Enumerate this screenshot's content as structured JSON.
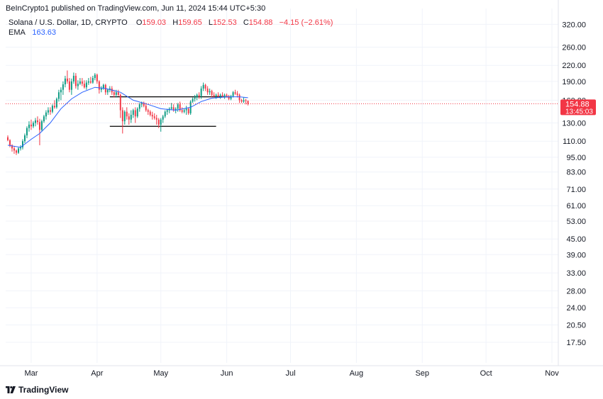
{
  "header": {
    "published_line": "BeInCrypto1 published on TradingView.com, Jun 11, 2024 15:44 UTC+5:30"
  },
  "legend": {
    "symbol": "Solana / U.S. Dollar, 1D, CRYPTO",
    "o_label": "O",
    "o_value": "159.03",
    "h_label": "H",
    "h_value": "159.65",
    "l_label": "L",
    "l_value": "152.53",
    "c_label": "C",
    "c_value": "154.88",
    "change": "−4.15 (−2.61%)",
    "ema_label": "EMA",
    "ema_value": "163.63"
  },
  "price_tag": {
    "value": "154.88",
    "countdown": "13:45:03",
    "color": "#f23645"
  },
  "footer": {
    "brand": "TradingView"
  },
  "colors": {
    "up": "#089981",
    "down": "#f23645",
    "ema": "#2962ff",
    "grid": "#f0f3fa",
    "axis_text": "#131722",
    "level_line": "#000000"
  },
  "chart_data": {
    "type": "candlestick",
    "scale": "log",
    "y_ticks": [
      320.0,
      260.0,
      220.0,
      190.0,
      160.0,
      130.0,
      110.0,
      95.0,
      83.0,
      71.0,
      61.0,
      53.0,
      45.0,
      39.0,
      33.0,
      28.0,
      24.0,
      20.5,
      17.5
    ],
    "x_ticks": [
      "Mar",
      "Apr",
      "May",
      "Jun",
      "Jul",
      "Aug",
      "Sep",
      "Oct",
      "Nov"
    ],
    "x_tick_dates": [
      "2024-03-01",
      "2024-04-01",
      "2024-05-01",
      "2024-06-01",
      "2024-07-01",
      "2024-08-01",
      "2024-09-01",
      "2024-10-01",
      "2024-11-01"
    ],
    "x_range": [
      "2024-02-18",
      "2024-11-04"
    ],
    "y_range": [
      14.5,
      370
    ],
    "candles": [
      {
        "d": "2024-02-19",
        "o": 114,
        "h": 116,
        "l": 110,
        "c": 111
      },
      {
        "d": "2024-02-20",
        "o": 111,
        "h": 112,
        "l": 104,
        "c": 106
      },
      {
        "d": "2024-02-21",
        "o": 106,
        "h": 107,
        "l": 100,
        "c": 103
      },
      {
        "d": "2024-02-22",
        "o": 103,
        "h": 105,
        "l": 98,
        "c": 101
      },
      {
        "d": "2024-02-23",
        "o": 101,
        "h": 102,
        "l": 97,
        "c": 99
      },
      {
        "d": "2024-02-24",
        "o": 99,
        "h": 104,
        "l": 98,
        "c": 103
      },
      {
        "d": "2024-02-25",
        "o": 103,
        "h": 106,
        "l": 101,
        "c": 104
      },
      {
        "d": "2024-02-26",
        "o": 104,
        "h": 112,
        "l": 102,
        "c": 110
      },
      {
        "d": "2024-02-27",
        "o": 110,
        "h": 118,
        "l": 108,
        "c": 116
      },
      {
        "d": "2024-02-28",
        "o": 116,
        "h": 126,
        "l": 113,
        "c": 124
      },
      {
        "d": "2024-02-29",
        "o": 124,
        "h": 132,
        "l": 120,
        "c": 128
      },
      {
        "d": "2024-03-01",
        "o": 128,
        "h": 134,
        "l": 122,
        "c": 126
      },
      {
        "d": "2024-03-02",
        "o": 126,
        "h": 132,
        "l": 124,
        "c": 130
      },
      {
        "d": "2024-03-03",
        "o": 130,
        "h": 136,
        "l": 126,
        "c": 133
      },
      {
        "d": "2024-03-04",
        "o": 133,
        "h": 138,
        "l": 128,
        "c": 131
      },
      {
        "d": "2024-03-05",
        "o": 131,
        "h": 135,
        "l": 106,
        "c": 122
      },
      {
        "d": "2024-03-06",
        "o": 122,
        "h": 134,
        "l": 120,
        "c": 132
      },
      {
        "d": "2024-03-07",
        "o": 132,
        "h": 140,
        "l": 130,
        "c": 138
      },
      {
        "d": "2024-03-08",
        "o": 138,
        "h": 146,
        "l": 134,
        "c": 143
      },
      {
        "d": "2024-03-09",
        "o": 143,
        "h": 150,
        "l": 140,
        "c": 146
      },
      {
        "d": "2024-03-10",
        "o": 146,
        "h": 150,
        "l": 140,
        "c": 144
      },
      {
        "d": "2024-03-11",
        "o": 144,
        "h": 154,
        "l": 142,
        "c": 152
      },
      {
        "d": "2024-03-12",
        "o": 152,
        "h": 160,
        "l": 148,
        "c": 150
      },
      {
        "d": "2024-03-13",
        "o": 150,
        "h": 164,
        "l": 148,
        "c": 162
      },
      {
        "d": "2024-03-14",
        "o": 162,
        "h": 176,
        "l": 158,
        "c": 172
      },
      {
        "d": "2024-03-15",
        "o": 172,
        "h": 180,
        "l": 160,
        "c": 176
      },
      {
        "d": "2024-03-16",
        "o": 176,
        "h": 190,
        "l": 168,
        "c": 185
      },
      {
        "d": "2024-03-17",
        "o": 185,
        "h": 200,
        "l": 180,
        "c": 195
      },
      {
        "d": "2024-03-18",
        "o": 195,
        "h": 210,
        "l": 186,
        "c": 190
      },
      {
        "d": "2024-03-19",
        "o": 190,
        "h": 196,
        "l": 172,
        "c": 176
      },
      {
        "d": "2024-03-20",
        "o": 176,
        "h": 195,
        "l": 168,
        "c": 190
      },
      {
        "d": "2024-03-21",
        "o": 190,
        "h": 206,
        "l": 186,
        "c": 200
      },
      {
        "d": "2024-03-22",
        "o": 200,
        "h": 205,
        "l": 178,
        "c": 182
      },
      {
        "d": "2024-03-23",
        "o": 182,
        "h": 192,
        "l": 176,
        "c": 186
      },
      {
        "d": "2024-03-24",
        "o": 186,
        "h": 196,
        "l": 184,
        "c": 190
      },
      {
        "d": "2024-03-25",
        "o": 190,
        "h": 196,
        "l": 182,
        "c": 186
      },
      {
        "d": "2024-03-26",
        "o": 186,
        "h": 192,
        "l": 178,
        "c": 180
      },
      {
        "d": "2024-03-27",
        "o": 180,
        "h": 192,
        "l": 176,
        "c": 188
      },
      {
        "d": "2024-03-28",
        "o": 188,
        "h": 196,
        "l": 184,
        "c": 190
      },
      {
        "d": "2024-03-29",
        "o": 190,
        "h": 198,
        "l": 186,
        "c": 188
      },
      {
        "d": "2024-03-30",
        "o": 188,
        "h": 200,
        "l": 186,
        "c": 196
      },
      {
        "d": "2024-03-31",
        "o": 196,
        "h": 205,
        "l": 192,
        "c": 202
      },
      {
        "d": "2024-04-01",
        "o": 202,
        "h": 204,
        "l": 186,
        "c": 190
      },
      {
        "d": "2024-04-02",
        "o": 190,
        "h": 192,
        "l": 170,
        "c": 176
      },
      {
        "d": "2024-04-03",
        "o": 176,
        "h": 182,
        "l": 172,
        "c": 178
      },
      {
        "d": "2024-04-04",
        "o": 178,
        "h": 186,
        "l": 176,
        "c": 184
      },
      {
        "d": "2024-04-05",
        "o": 184,
        "h": 186,
        "l": 168,
        "c": 172
      },
      {
        "d": "2024-04-06",
        "o": 172,
        "h": 178,
        "l": 168,
        "c": 176
      },
      {
        "d": "2024-04-07",
        "o": 176,
        "h": 182,
        "l": 172,
        "c": 178
      },
      {
        "d": "2024-04-08",
        "o": 178,
        "h": 182,
        "l": 168,
        "c": 172
      },
      {
        "d": "2024-04-09",
        "o": 172,
        "h": 176,
        "l": 164,
        "c": 168
      },
      {
        "d": "2024-04-10",
        "o": 168,
        "h": 176,
        "l": 164,
        "c": 172
      },
      {
        "d": "2024-04-11",
        "o": 172,
        "h": 176,
        "l": 166,
        "c": 168
      },
      {
        "d": "2024-04-12",
        "o": 168,
        "h": 170,
        "l": 136,
        "c": 146
      },
      {
        "d": "2024-04-13",
        "o": 146,
        "h": 150,
        "l": 118,
        "c": 132
      },
      {
        "d": "2024-04-14",
        "o": 132,
        "h": 146,
        "l": 128,
        "c": 144
      },
      {
        "d": "2024-04-15",
        "o": 144,
        "h": 150,
        "l": 134,
        "c": 138
      },
      {
        "d": "2024-04-16",
        "o": 138,
        "h": 142,
        "l": 128,
        "c": 134
      },
      {
        "d": "2024-04-17",
        "o": 134,
        "h": 146,
        "l": 130,
        "c": 140
      },
      {
        "d": "2024-04-18",
        "o": 140,
        "h": 148,
        "l": 136,
        "c": 146
      },
      {
        "d": "2024-04-19",
        "o": 146,
        "h": 150,
        "l": 130,
        "c": 138
      },
      {
        "d": "2024-04-20",
        "o": 138,
        "h": 150,
        "l": 136,
        "c": 148
      },
      {
        "d": "2024-04-21",
        "o": 148,
        "h": 156,
        "l": 144,
        "c": 154
      },
      {
        "d": "2024-04-22",
        "o": 154,
        "h": 158,
        "l": 150,
        "c": 156
      },
      {
        "d": "2024-04-23",
        "o": 156,
        "h": 158,
        "l": 150,
        "c": 152
      },
      {
        "d": "2024-04-24",
        "o": 152,
        "h": 156,
        "l": 144,
        "c": 146
      },
      {
        "d": "2024-04-25",
        "o": 146,
        "h": 148,
        "l": 140,
        "c": 144
      },
      {
        "d": "2024-04-26",
        "o": 144,
        "h": 146,
        "l": 138,
        "c": 140
      },
      {
        "d": "2024-04-27",
        "o": 140,
        "h": 144,
        "l": 134,
        "c": 138
      },
      {
        "d": "2024-04-28",
        "o": 138,
        "h": 142,
        "l": 134,
        "c": 136
      },
      {
        "d": "2024-04-29",
        "o": 136,
        "h": 140,
        "l": 128,
        "c": 134
      },
      {
        "d": "2024-04-30",
        "o": 134,
        "h": 136,
        "l": 124,
        "c": 128
      },
      {
        "d": "2024-05-01",
        "o": 128,
        "h": 136,
        "l": 120,
        "c": 134
      },
      {
        "d": "2024-05-02",
        "o": 134,
        "h": 140,
        "l": 130,
        "c": 138
      },
      {
        "d": "2024-05-03",
        "o": 138,
        "h": 146,
        "l": 136,
        "c": 144
      },
      {
        "d": "2024-05-04",
        "o": 144,
        "h": 148,
        "l": 140,
        "c": 146
      },
      {
        "d": "2024-05-05",
        "o": 146,
        "h": 150,
        "l": 142,
        "c": 148
      },
      {
        "d": "2024-05-06",
        "o": 148,
        "h": 156,
        "l": 146,
        "c": 150
      },
      {
        "d": "2024-05-07",
        "o": 150,
        "h": 154,
        "l": 144,
        "c": 146
      },
      {
        "d": "2024-05-08",
        "o": 146,
        "h": 150,
        "l": 142,
        "c": 148
      },
      {
        "d": "2024-05-09",
        "o": 148,
        "h": 156,
        "l": 144,
        "c": 154
      },
      {
        "d": "2024-05-10",
        "o": 154,
        "h": 158,
        "l": 144,
        "c": 146
      },
      {
        "d": "2024-05-11",
        "o": 146,
        "h": 150,
        "l": 142,
        "c": 144
      },
      {
        "d": "2024-05-12",
        "o": 144,
        "h": 148,
        "l": 142,
        "c": 146
      },
      {
        "d": "2024-05-13",
        "o": 146,
        "h": 152,
        "l": 140,
        "c": 148
      },
      {
        "d": "2024-05-14",
        "o": 148,
        "h": 150,
        "l": 140,
        "c": 142
      },
      {
        "d": "2024-05-15",
        "o": 142,
        "h": 160,
        "l": 140,
        "c": 158
      },
      {
        "d": "2024-05-16",
        "o": 158,
        "h": 164,
        "l": 156,
        "c": 162
      },
      {
        "d": "2024-05-17",
        "o": 162,
        "h": 168,
        "l": 158,
        "c": 164
      },
      {
        "d": "2024-05-18",
        "o": 164,
        "h": 170,
        "l": 160,
        "c": 168
      },
      {
        "d": "2024-05-19",
        "o": 168,
        "h": 172,
        "l": 162,
        "c": 166
      },
      {
        "d": "2024-05-20",
        "o": 166,
        "h": 182,
        "l": 162,
        "c": 178
      },
      {
        "d": "2024-05-21",
        "o": 178,
        "h": 188,
        "l": 174,
        "c": 184
      },
      {
        "d": "2024-05-22",
        "o": 184,
        "h": 186,
        "l": 174,
        "c": 178
      },
      {
        "d": "2024-05-23",
        "o": 178,
        "h": 182,
        "l": 168,
        "c": 172
      },
      {
        "d": "2024-05-24",
        "o": 172,
        "h": 178,
        "l": 168,
        "c": 174
      },
      {
        "d": "2024-05-25",
        "o": 174,
        "h": 176,
        "l": 164,
        "c": 168
      },
      {
        "d": "2024-05-26",
        "o": 168,
        "h": 172,
        "l": 164,
        "c": 166
      },
      {
        "d": "2024-05-27",
        "o": 166,
        "h": 170,
        "l": 162,
        "c": 168
      },
      {
        "d": "2024-05-28",
        "o": 168,
        "h": 172,
        "l": 164,
        "c": 166
      },
      {
        "d": "2024-05-29",
        "o": 166,
        "h": 170,
        "l": 162,
        "c": 168
      },
      {
        "d": "2024-05-30",
        "o": 168,
        "h": 172,
        "l": 164,
        "c": 166
      },
      {
        "d": "2024-05-31",
        "o": 166,
        "h": 170,
        "l": 162,
        "c": 168
      },
      {
        "d": "2024-06-01",
        "o": 168,
        "h": 170,
        "l": 164,
        "c": 166
      },
      {
        "d": "2024-06-02",
        "o": 166,
        "h": 168,
        "l": 160,
        "c": 162
      },
      {
        "d": "2024-06-03",
        "o": 162,
        "h": 168,
        "l": 160,
        "c": 166
      },
      {
        "d": "2024-06-04",
        "o": 166,
        "h": 174,
        "l": 164,
        "c": 172
      },
      {
        "d": "2024-06-05",
        "o": 172,
        "h": 176,
        "l": 168,
        "c": 170
      },
      {
        "d": "2024-06-06",
        "o": 170,
        "h": 174,
        "l": 164,
        "c": 168
      },
      {
        "d": "2024-06-07",
        "o": 168,
        "h": 170,
        "l": 156,
        "c": 160
      },
      {
        "d": "2024-06-08",
        "o": 160,
        "h": 162,
        "l": 156,
        "c": 158
      },
      {
        "d": "2024-06-09",
        "o": 158,
        "h": 164,
        "l": 156,
        "c": 160
      },
      {
        "d": "2024-06-10",
        "o": 160,
        "h": 162,
        "l": 154,
        "c": 159
      },
      {
        "d": "2024-06-11",
        "o": 159.03,
        "h": 159.65,
        "l": 152.53,
        "c": 154.88
      }
    ],
    "ema": [
      {
        "d": "2024-02-19",
        "v": 106
      },
      {
        "d": "2024-02-25",
        "v": 104
      },
      {
        "d": "2024-03-01",
        "v": 112
      },
      {
        "d": "2024-03-05",
        "v": 118
      },
      {
        "d": "2024-03-10",
        "v": 130
      },
      {
        "d": "2024-03-15",
        "v": 148
      },
      {
        "d": "2024-03-20",
        "v": 162
      },
      {
        "d": "2024-03-25",
        "v": 172
      },
      {
        "d": "2024-03-31",
        "v": 180
      },
      {
        "d": "2024-04-05",
        "v": 178
      },
      {
        "d": "2024-04-12",
        "v": 172
      },
      {
        "d": "2024-04-18",
        "v": 160
      },
      {
        "d": "2024-04-25",
        "v": 154
      },
      {
        "d": "2024-05-01",
        "v": 148
      },
      {
        "d": "2024-05-08",
        "v": 146
      },
      {
        "d": "2024-05-15",
        "v": 150
      },
      {
        "d": "2024-05-20",
        "v": 158
      },
      {
        "d": "2024-05-25",
        "v": 163
      },
      {
        "d": "2024-06-01",
        "v": 165
      },
      {
        "d": "2024-06-07",
        "v": 165
      },
      {
        "d": "2024-06-11",
        "v": 163.63
      }
    ],
    "levels": [
      {
        "from": "2024-04-07",
        "to": "2024-06-03",
        "price": 165
      },
      {
        "from": "2024-04-07",
        "to": "2024-05-27",
        "price": 126
      }
    ],
    "last_price": 154.88
  }
}
